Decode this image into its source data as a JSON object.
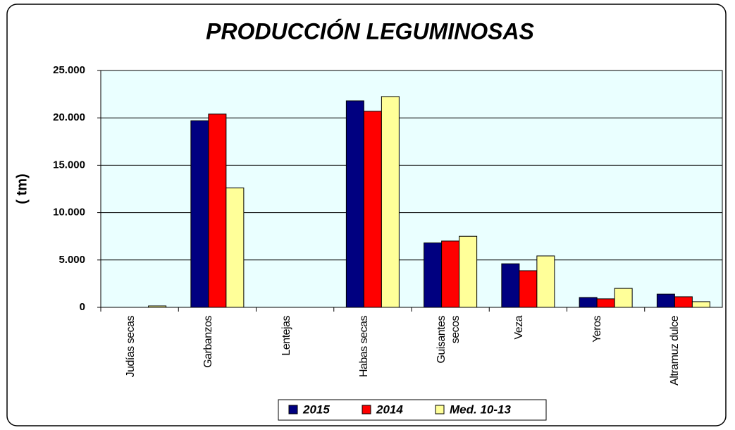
{
  "chart_data": {
    "type": "bar",
    "title": "PRODUCCIÓN LEGUMINOSAS",
    "y_label": "( tm)",
    "categories": [
      "Judías secas",
      "Garbanzos",
      "Lentejas",
      "Habas secas",
      "Guisantes secos",
      "Veza",
      "Yeros",
      "Altramuz dulce"
    ],
    "series": [
      {
        "name": "2015",
        "color": "#000080",
        "values": [
          0,
          19700,
          0,
          21800,
          6800,
          4600,
          1040,
          1400
        ]
      },
      {
        "name": "2014",
        "color": "#ff0000",
        "values": [
          0,
          20400,
          0,
          20700,
          7000,
          3870,
          900,
          1120
        ]
      },
      {
        "name": "Med. 10-13",
        "color": "#ffff99",
        "values": [
          150,
          12600,
          0,
          22250,
          7500,
          5430,
          2000,
          600
        ]
      }
    ],
    "ylim": [
      0,
      25000
    ],
    "yticks": [
      0,
      {
        "value": 5000,
        "label": "5.000"
      },
      {
        "value": 10000,
        "label": "10.000"
      },
      {
        "value": 15000,
        "label": "15.000"
      },
      {
        "value": 20000,
        "label": "20.000"
      },
      {
        "value": 25000,
        "label": "25.000"
      }
    ],
    "grid": true,
    "legend": "bottom"
  }
}
